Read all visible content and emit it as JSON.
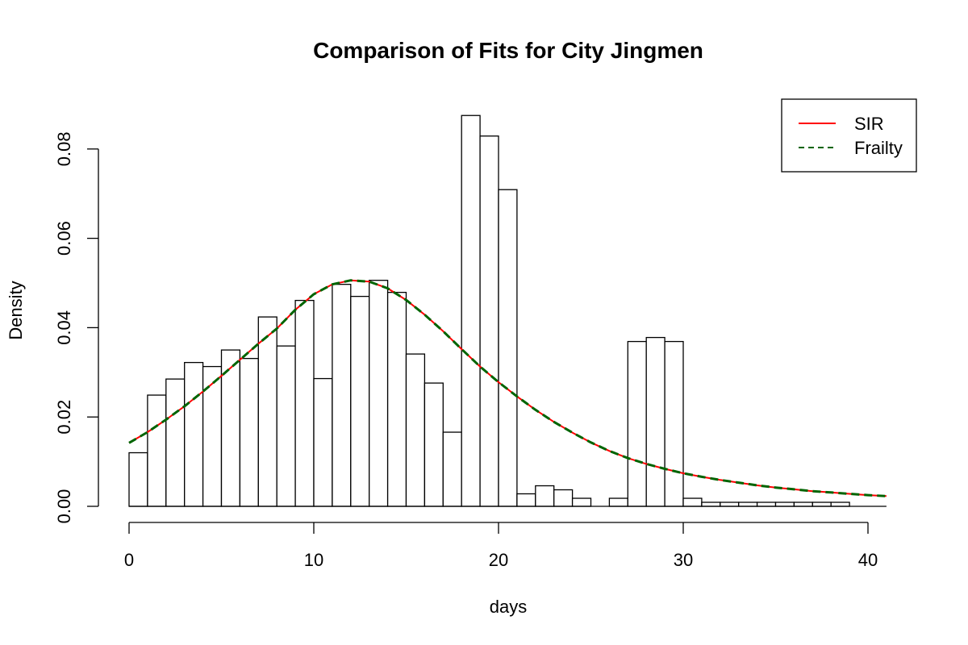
{
  "chart_data": {
    "type": "bar",
    "title": "Comparison of Fits for City Jingmen",
    "xlabel": "days",
    "ylabel": "Density",
    "xlim": [
      0,
      41
    ],
    "ylim": [
      0,
      0.08
    ],
    "x_ticks": [
      0,
      10,
      20,
      30,
      40
    ],
    "y_ticks": [
      "0.00",
      "0.02",
      "0.04",
      "0.06",
      "0.08"
    ],
    "grid": false,
    "legend_position": "top-right",
    "bins": [
      {
        "start": 0,
        "end": 1,
        "value": 0.012
      },
      {
        "start": 1,
        "end": 2,
        "value": 0.0249
      },
      {
        "start": 2,
        "end": 3,
        "value": 0.0285
      },
      {
        "start": 3,
        "end": 4,
        "value": 0.0322
      },
      {
        "start": 4,
        "end": 5,
        "value": 0.0313
      },
      {
        "start": 5,
        "end": 6,
        "value": 0.035
      },
      {
        "start": 6,
        "end": 7,
        "value": 0.0331
      },
      {
        "start": 7,
        "end": 8,
        "value": 0.0424
      },
      {
        "start": 8,
        "end": 9,
        "value": 0.0359
      },
      {
        "start": 9,
        "end": 10,
        "value": 0.0461
      },
      {
        "start": 10,
        "end": 11,
        "value": 0.0286
      },
      {
        "start": 11,
        "end": 12,
        "value": 0.0497
      },
      {
        "start": 12,
        "end": 13,
        "value": 0.047
      },
      {
        "start": 13,
        "end": 14,
        "value": 0.0506
      },
      {
        "start": 14,
        "end": 15,
        "value": 0.0479
      },
      {
        "start": 15,
        "end": 16,
        "value": 0.0341
      },
      {
        "start": 16,
        "end": 17,
        "value": 0.0276
      },
      {
        "start": 17,
        "end": 18,
        "value": 0.0166
      },
      {
        "start": 18,
        "end": 19,
        "value": 0.0875
      },
      {
        "start": 19,
        "end": 20,
        "value": 0.0829
      },
      {
        "start": 20,
        "end": 21,
        "value": 0.0709
      },
      {
        "start": 21,
        "end": 22,
        "value": 0.0028
      },
      {
        "start": 22,
        "end": 23,
        "value": 0.0046
      },
      {
        "start": 23,
        "end": 24,
        "value": 0.0037
      },
      {
        "start": 24,
        "end": 25,
        "value": 0.0018
      },
      {
        "start": 25,
        "end": 26,
        "value": 0.0
      },
      {
        "start": 26,
        "end": 27,
        "value": 0.0018
      },
      {
        "start": 27,
        "end": 28,
        "value": 0.0369
      },
      {
        "start": 28,
        "end": 29,
        "value": 0.0378
      },
      {
        "start": 29,
        "end": 30,
        "value": 0.0369
      },
      {
        "start": 30,
        "end": 31,
        "value": 0.0018
      },
      {
        "start": 31,
        "end": 32,
        "value": 0.0009
      },
      {
        "start": 32,
        "end": 33,
        "value": 0.0009
      },
      {
        "start": 33,
        "end": 34,
        "value": 0.0009
      },
      {
        "start": 34,
        "end": 35,
        "value": 0.0009
      },
      {
        "start": 35,
        "end": 36,
        "value": 0.0009
      },
      {
        "start": 36,
        "end": 37,
        "value": 0.0009
      },
      {
        "start": 37,
        "end": 38,
        "value": 0.0009
      },
      {
        "start": 38,
        "end": 39,
        "value": 0.0009
      }
    ],
    "series": [
      {
        "name": "SIR",
        "color": "#ff0000",
        "dash": "solid",
        "x": [
          0,
          1,
          2,
          3,
          4,
          5,
          6,
          7,
          8,
          9,
          10,
          11,
          12,
          13,
          14,
          15,
          16,
          17,
          18,
          19,
          20,
          21,
          22,
          23,
          24,
          25,
          26,
          27,
          28,
          29,
          30,
          31,
          32,
          33,
          34,
          35,
          36,
          37,
          38,
          39,
          40,
          41
        ],
        "y": [
          0.0142,
          0.0166,
          0.0194,
          0.0224,
          0.0257,
          0.0292,
          0.0328,
          0.0364,
          0.0398,
          0.044,
          0.0475,
          0.0497,
          0.0506,
          0.0503,
          0.0488,
          0.0462,
          0.0429,
          0.0392,
          0.0352,
          0.0313,
          0.0278,
          0.0246,
          0.0216,
          0.0189,
          0.0165,
          0.0143,
          0.0124,
          0.0108,
          0.0095,
          0.0084,
          0.0074,
          0.0066,
          0.0059,
          0.0053,
          0.0047,
          0.0042,
          0.0038,
          0.0034,
          0.0031,
          0.0028,
          0.0025,
          0.0023
        ]
      },
      {
        "name": "Frailty",
        "color": "#006400",
        "dash": "dashed",
        "x": [
          0,
          1,
          2,
          3,
          4,
          5,
          6,
          7,
          8,
          9,
          10,
          11,
          12,
          13,
          14,
          15,
          16,
          17,
          18,
          19,
          20,
          21,
          22,
          23,
          24,
          25,
          26,
          27,
          28,
          29,
          30,
          31,
          32,
          33,
          34,
          35,
          36,
          37,
          38,
          39,
          40,
          41
        ],
        "y": [
          0.0142,
          0.0166,
          0.0194,
          0.0224,
          0.0257,
          0.0292,
          0.0328,
          0.0364,
          0.0398,
          0.044,
          0.0475,
          0.0497,
          0.0506,
          0.0503,
          0.0488,
          0.0462,
          0.0429,
          0.0392,
          0.0352,
          0.0313,
          0.0278,
          0.0246,
          0.0216,
          0.0189,
          0.0165,
          0.0143,
          0.0124,
          0.0108,
          0.0095,
          0.0084,
          0.0074,
          0.0066,
          0.0059,
          0.0053,
          0.0047,
          0.0042,
          0.0038,
          0.0034,
          0.0031,
          0.0028,
          0.0025,
          0.0023
        ]
      }
    ]
  }
}
